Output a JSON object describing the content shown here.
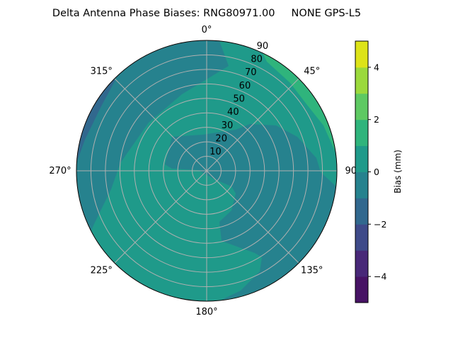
{
  "chart_data": {
    "type": "contour",
    "projection": "polar",
    "title": "Delta Antenna Phase Biases: RNG80971.00     NONE GPS-L5",
    "theta_ticks": [
      "0°",
      "45°",
      "90°",
      "135°",
      "180°",
      "225°",
      "270°",
      "315°"
    ],
    "theta_zero": "north",
    "theta_direction": "clockwise",
    "r_ticks": [
      "10",
      "20",
      "30",
      "40",
      "50",
      "60",
      "70",
      "80",
      "90"
    ],
    "rlim": [
      0,
      90
    ],
    "grid": true,
    "levels": [
      -5,
      -4,
      -3,
      -2,
      -1,
      0,
      1,
      2,
      3,
      4,
      5
    ],
    "colormap": "viridis",
    "level_colors": [
      "#471365",
      "#482878",
      "#3e4a89",
      "#31688e",
      "#26828e",
      "#1f9a8a",
      "#2fb47c",
      "#5ec962",
      "#9bd93c",
      "#dde318"
    ],
    "colorbar": {
      "label": "Bias (mm)",
      "ticks": [
        "−4",
        "−2",
        "0",
        "2",
        "4"
      ],
      "tick_values": [
        -4,
        -2,
        0,
        2,
        4
      ],
      "range": [
        -5,
        5
      ]
    },
    "regions": [
      {
        "level_range": [
          0,
          1
        ],
        "extent": "background, center-south-west and north-east"
      },
      {
        "level_range": [
          -1,
          0
        ],
        "extent": "north-west band and east/south-east lobe"
      },
      {
        "level_range": [
          -2,
          -1
        ],
        "extent": "west edge near 290°-310°"
      },
      {
        "level_range": [
          1,
          2
        ],
        "extent": "north-east edge near 30°-80°"
      }
    ]
  }
}
